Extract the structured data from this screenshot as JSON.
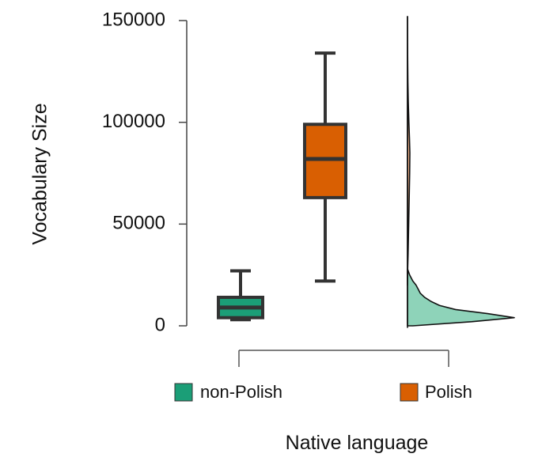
{
  "chart_data": {
    "type": "box",
    "ylabel": "Vocabulary Size",
    "xlabel": "Native language",
    "ylim": [
      0,
      150000
    ],
    "yticks": [
      0,
      50000,
      100000,
      150000
    ],
    "ytick_labels": [
      "0",
      "50000",
      "100000",
      "150000"
    ],
    "grid": false,
    "legend_placement": "bottom",
    "groups": [
      {
        "name": "non-Polish",
        "color": "#1b9e77",
        "whisker_low": 3000,
        "q1": 4000,
        "median": 9000,
        "q3": 14000,
        "whisker_high": 27000
      },
      {
        "name": "Polish",
        "color": "#d95f02",
        "whisker_low": 22000,
        "q1": 63000,
        "median": 82000,
        "q3": 99000,
        "whisker_high": 134000
      }
    ],
    "density": [
      {
        "group": "non-Polish",
        "color": "#8ed3b9",
        "points": [
          [
            0,
            0.05
          ],
          [
            2000,
            0.6
          ],
          [
            4000,
            1.0
          ],
          [
            6000,
            0.75
          ],
          [
            8000,
            0.45
          ],
          [
            10000,
            0.3
          ],
          [
            12000,
            0.22
          ],
          [
            14000,
            0.16
          ],
          [
            16000,
            0.12
          ],
          [
            18000,
            0.1
          ],
          [
            20000,
            0.08
          ],
          [
            22000,
            0.05
          ],
          [
            25000,
            0.02
          ],
          [
            28000,
            0.0
          ]
        ]
      },
      {
        "group": "Polish",
        "color": "#f2b28a",
        "points": [
          [
            20000,
            0.0
          ],
          [
            28000,
            0.01
          ],
          [
            35000,
            0.03
          ],
          [
            45000,
            0.05
          ],
          [
            55000,
            0.07
          ],
          [
            65000,
            0.09
          ],
          [
            75000,
            0.11
          ],
          [
            85000,
            0.12
          ],
          [
            92000,
            0.1
          ],
          [
            100000,
            0.07
          ],
          [
            110000,
            0.04
          ],
          [
            120000,
            0.02
          ],
          [
            130000,
            0.01
          ],
          [
            140000,
            0.003
          ],
          [
            152000,
            0.0
          ]
        ]
      }
    ]
  }
}
